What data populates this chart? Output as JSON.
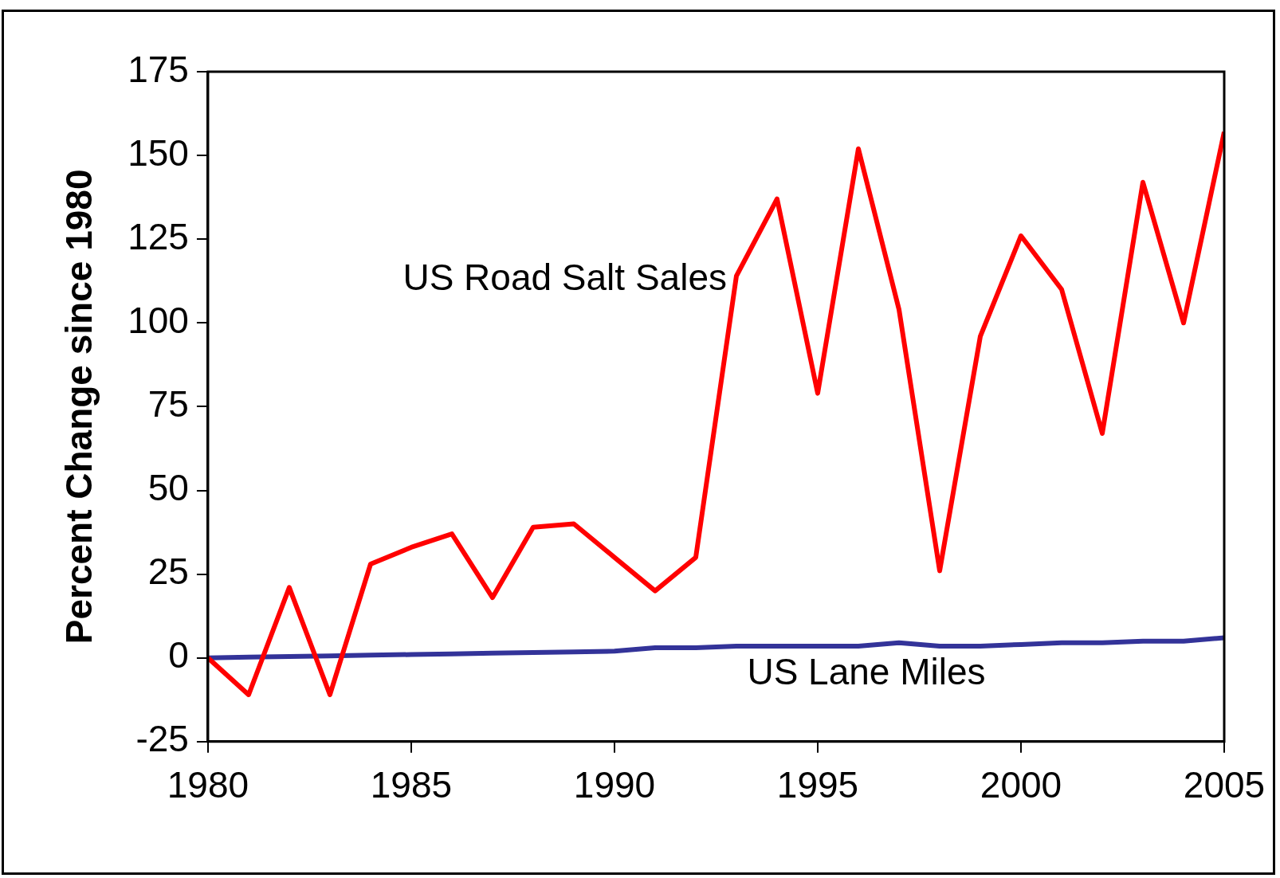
{
  "chart_data": {
    "type": "line",
    "ylabel": "Percent Change since 1980",
    "x": [
      1980,
      1981,
      1982,
      1983,
      1984,
      1985,
      1986,
      1987,
      1988,
      1989,
      1990,
      1991,
      1992,
      1993,
      1994,
      1995,
      1996,
      1997,
      1998,
      1999,
      2000,
      2001,
      2002,
      2003,
      2004,
      2005
    ],
    "series": [
      {
        "name": "US Road Salt Sales",
        "color": "#ff0000",
        "values": [
          0,
          -11,
          21,
          -11,
          28,
          33,
          37,
          18,
          39,
          40,
          30,
          20,
          30,
          114,
          137,
          79,
          152,
          104,
          26,
          96,
          126,
          110,
          67,
          142,
          100,
          157
        ]
      },
      {
        "name": "US Lane Miles",
        "color": "#333399",
        "values": [
          0,
          0.2,
          0.4,
          0.6,
          0.8,
          1,
          1.2,
          1.4,
          1.6,
          1.8,
          2,
          3,
          3,
          3.5,
          3.5,
          3.5,
          3.5,
          4.5,
          3.5,
          3.5,
          4,
          4.5,
          4.5,
          5,
          5,
          6
        ]
      }
    ],
    "xlim": [
      1980,
      2005
    ],
    "xticks": [
      1980,
      1985,
      1990,
      1995,
      2000,
      2005
    ],
    "ylim": [
      -25,
      175
    ],
    "yticks": [
      -25,
      0,
      25,
      50,
      75,
      100,
      125,
      150,
      175
    ],
    "grid": false,
    "legend": false,
    "marker": "none",
    "line_style": "solid"
  }
}
